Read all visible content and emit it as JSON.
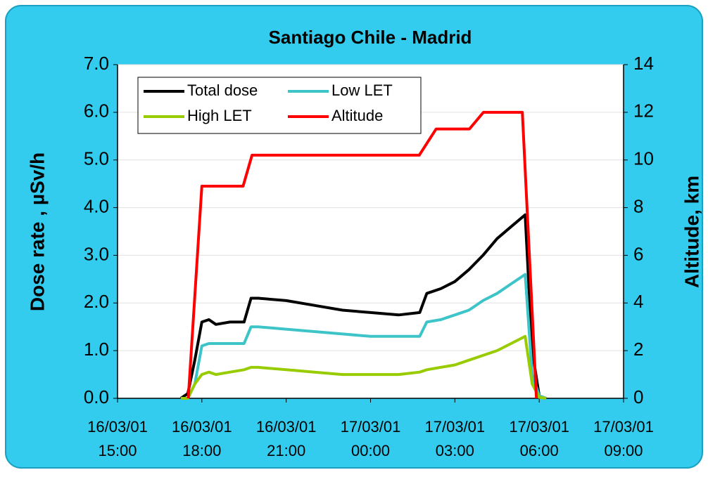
{
  "chart_data": {
    "type": "line",
    "title": "Santiago Chile - Madrid",
    "ylabel": "Dose rate , µSv/h",
    "y2label": "Altitude, km",
    "xlim": [
      "16/03/01 15:00",
      "17/03/01 09:00"
    ],
    "xticks": [
      "16/03/01 15:00",
      "16/03/01 18:00",
      "16/03/01 21:00",
      "17/03/01 00:00",
      "17/03/01 03:00",
      "17/03/01 06:00",
      "17/03/01 09:00"
    ],
    "ylim": [
      0,
      7
    ],
    "yticks": [
      {
        "value": 0,
        "label": "0.0"
      },
      {
        "value": 1,
        "label": "1.0"
      },
      {
        "value": 2,
        "label": "2.0"
      },
      {
        "value": 3,
        "label": "3.0"
      },
      {
        "value": 4,
        "label": "4.0"
      },
      {
        "value": 5,
        "label": "5.0"
      },
      {
        "value": 6,
        "label": "6.0"
      },
      {
        "value": 7,
        "label": "7.0"
      }
    ],
    "y2lim": [
      0,
      14
    ],
    "y2ticks": [
      0,
      2,
      4,
      6,
      8,
      10,
      12,
      14
    ],
    "grid": true,
    "legend": "upper left",
    "x": [
      "16/03/01 17:15",
      "16/03/01 17:30",
      "16/03/01 17:45",
      "16/03/01 18:00",
      "16/03/01 18:15",
      "16/03/01 18:30",
      "16/03/01 19:00",
      "16/03/01 19:30",
      "16/03/01 19:45",
      "16/03/01 20:00",
      "16/03/01 21:00",
      "16/03/01 22:00",
      "16/03/01 23:00",
      "17/03/01 00:00",
      "17/03/01 01:00",
      "17/03/01 01:45",
      "17/03/01 02:00",
      "17/03/01 02:30",
      "17/03/01 03:00",
      "17/03/01 03:30",
      "17/03/01 04:00",
      "17/03/01 04:30",
      "17/03/01 05:00",
      "17/03/01 05:30",
      "17/03/01 05:45",
      "17/03/01 06:00",
      "17/03/01 06:15"
    ],
    "series": [
      {
        "name": "Total dose",
        "color": "#000000",
        "values": [
          0,
          0.1,
          0.8,
          1.6,
          1.65,
          1.55,
          1.6,
          1.6,
          2.1,
          2.1,
          2.05,
          1.95,
          1.85,
          1.8,
          1.75,
          1.8,
          2.2,
          2.3,
          2.45,
          2.7,
          3.0,
          3.35,
          3.6,
          3.85,
          1.0,
          0.05,
          0
        ]
      },
      {
        "name": "Low LET",
        "color": "#3cc4c8",
        "values": [
          0,
          0,
          0.3,
          1.1,
          1.15,
          1.15,
          1.15,
          1.15,
          1.5,
          1.5,
          1.45,
          1.4,
          1.35,
          1.3,
          1.3,
          1.3,
          1.6,
          1.65,
          1.75,
          1.85,
          2.05,
          2.2,
          2.4,
          2.6,
          0.5,
          0.05,
          0
        ]
      },
      {
        "name": "High LET",
        "color": "#99cc00",
        "values": [
          0,
          0,
          0.3,
          0.5,
          0.55,
          0.5,
          0.55,
          0.6,
          0.65,
          0.65,
          0.6,
          0.55,
          0.5,
          0.5,
          0.5,
          0.55,
          0.6,
          0.65,
          0.7,
          0.8,
          0.9,
          1.0,
          1.15,
          1.3,
          0.3,
          0.02,
          0
        ]
      },
      {
        "name": "Altitude",
        "color": "#ff0000",
        "axis": "y2",
        "x": [
          "16/03/01 17:31",
          "16/03/01 18:00",
          "16/03/01 19:28",
          "16/03/01 19:47",
          "17/03/01 01:44",
          "17/03/01 02:20",
          "17/03/01 03:31",
          "17/03/01 04:01",
          "17/03/01 05:24",
          "17/03/01 05:54"
        ],
        "values": [
          0,
          8.9,
          8.9,
          10.2,
          10.2,
          11.3,
          11.3,
          12.0,
          12.0,
          0
        ]
      }
    ]
  }
}
